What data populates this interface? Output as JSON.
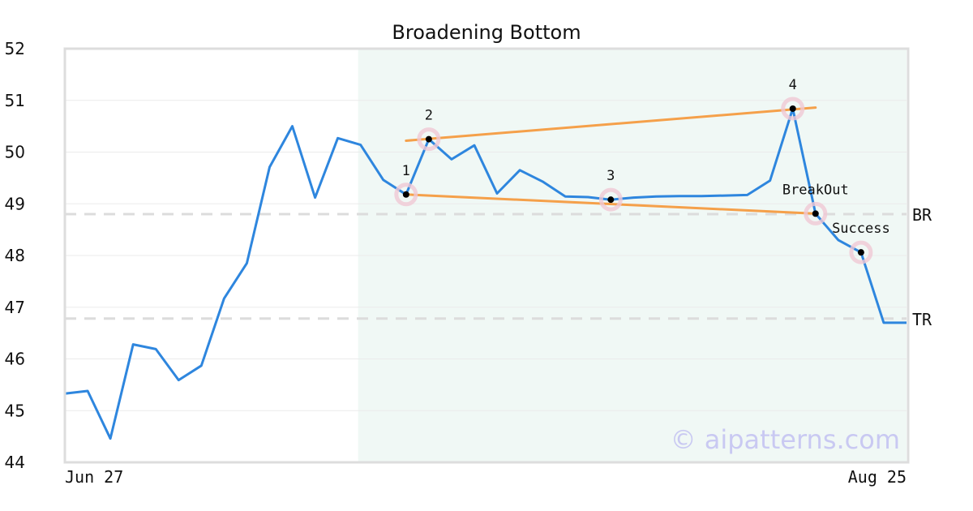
{
  "chart_data": {
    "type": "line",
    "title": "Broadening Bottom",
    "xlabel": "",
    "ylabel": "",
    "ylim": [
      44,
      52
    ],
    "yticks": [
      44,
      45,
      46,
      47,
      48,
      49,
      50,
      51,
      52
    ],
    "x_tick_labels": [
      "Jun 27",
      "Aug 25"
    ],
    "grid": true,
    "watermark": "© aipatterns.com",
    "colors": {
      "line": "#2e86de",
      "trendline": "#f5a04a",
      "highlight": "#e6f4ee",
      "refline": "#dcdcdc",
      "marker_halo": "#f0c8d4",
      "marker": "#000000"
    },
    "series": [
      {
        "values": [
          45.33,
          45.38,
          44.46,
          46.28,
          46.19,
          45.59,
          45.87,
          47.17,
          47.85,
          49.71,
          50.5,
          49.12,
          50.27,
          50.14,
          49.46,
          49.18,
          50.25,
          49.86,
          50.13,
          49.2,
          49.65,
          49.43,
          49.14,
          49.13,
          49.08,
          49.12,
          49.14,
          49.15,
          49.15,
          49.16,
          49.17,
          49.45,
          50.84,
          48.81,
          48.3,
          48.06,
          46.7,
          46.7
        ]
      }
    ],
    "highlight_range": [
      13,
      37
    ],
    "pattern_points": [
      {
        "label": "1",
        "index": 15,
        "value": 49.18
      },
      {
        "label": "2",
        "index": 16,
        "value": 50.25
      },
      {
        "label": "3",
        "index": 24,
        "value": 49.08
      },
      {
        "label": "4",
        "index": 32,
        "value": 50.84
      },
      {
        "label": "BreakOut",
        "index": 33,
        "value": 48.81
      },
      {
        "label": "Success",
        "index": 35,
        "value": 48.06
      }
    ],
    "trendlines": [
      {
        "from": [
          15,
          49.18
        ],
        "to": [
          33,
          48.81
        ]
      },
      {
        "from": [
          15,
          50.22
        ],
        "to": [
          33,
          50.86
        ]
      }
    ],
    "reference_lines": [
      {
        "label": "BR",
        "value": 48.8
      },
      {
        "label": "TR",
        "value": 46.78
      }
    ]
  }
}
